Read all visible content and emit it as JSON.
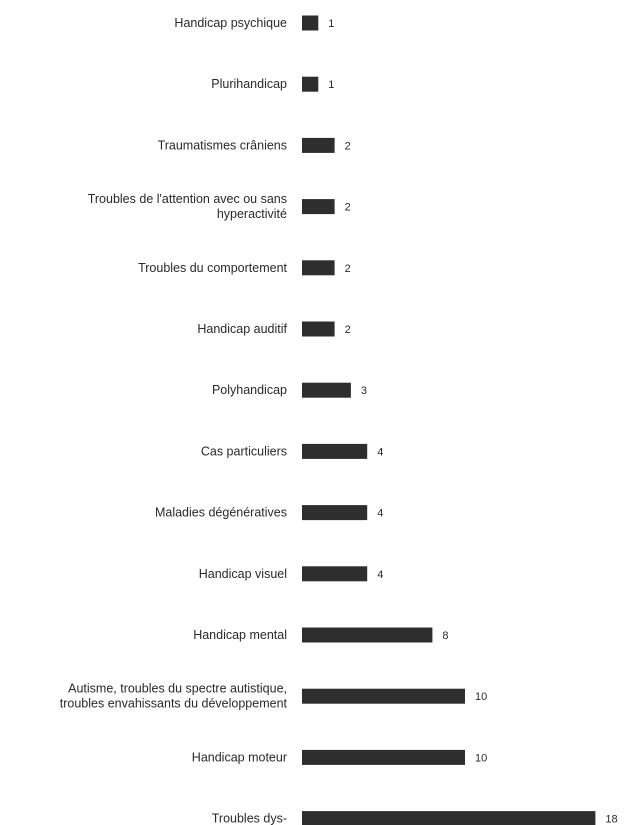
{
  "chart_data": {
    "type": "bar",
    "orientation": "horizontal",
    "title": "",
    "xlabel": "",
    "ylabel": "",
    "grid": false,
    "legend": "none",
    "bar_color": "#2e2e2e",
    "xlim": [
      0,
      18
    ],
    "categories": [
      "Handicap psychique",
      "Plurihandicap",
      "Traumatismes crâniens",
      "Troubles de l'attention avec ou sans hyperactivité",
      "Troubles du comportement",
      "Handicap auditif",
      "Polyhandicap",
      "Cas particuliers",
      "Maladies dégénératives",
      "Handicap visuel",
      "Handicap mental",
      "Autisme, troubles du spectre autistique, troubles envahissants du développement",
      "Handicap moteur",
      "Troubles dys-"
    ],
    "category_lines": [
      [
        "Handicap psychique"
      ],
      [
        "Plurihandicap"
      ],
      [
        "Traumatismes crâniens"
      ],
      [
        "Troubles de l'attention avec ou sans",
        "hyperactivité"
      ],
      [
        "Troubles du comportement"
      ],
      [
        "Handicap auditif"
      ],
      [
        "Polyhandicap"
      ],
      [
        "Cas particuliers"
      ],
      [
        "Maladies dégénératives"
      ],
      [
        "Handicap visuel"
      ],
      [
        "Handicap mental"
      ],
      [
        "Autisme, troubles du spectre autistique,",
        "troubles envahissants du développement"
      ],
      [
        "Handicap moteur"
      ],
      [
        "Troubles dys-"
      ]
    ],
    "values": [
      1,
      1,
      2,
      2,
      2,
      2,
      3,
      4,
      4,
      4,
      8,
      10,
      10,
      18
    ]
  }
}
